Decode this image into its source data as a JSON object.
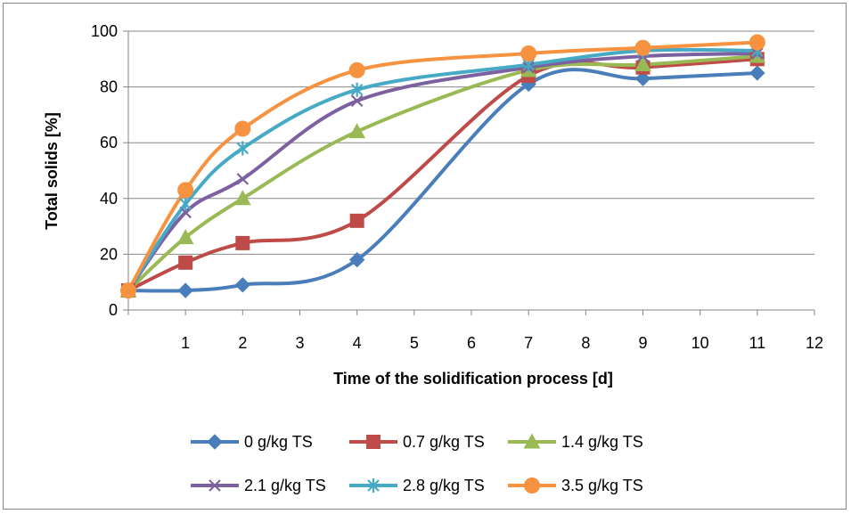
{
  "chart_data": {
    "type": "line",
    "title": "",
    "xlabel": "Time of the solidification  process [d]",
    "ylabel": "Total solids [%]",
    "xlim": [
      0,
      12
    ],
    "ylim": [
      0,
      100
    ],
    "x_ticks": [
      "1",
      "2",
      "3",
      "4",
      "5",
      "6",
      "7",
      "8",
      "9",
      "10",
      "11",
      "12"
    ],
    "y_ticks": [
      "0",
      "20",
      "40",
      "60",
      "80",
      "100"
    ],
    "grid": "horizontal",
    "legend_position": "bottom",
    "x": [
      0,
      1,
      2,
      4,
      7,
      9,
      11
    ],
    "series": [
      {
        "name": "0 g/kg TS",
        "color": "#4a7ebb",
        "marker": "diamond",
        "values": [
          7,
          7,
          9,
          18,
          81,
          83,
          85
        ]
      },
      {
        "name": "0.7 g/kg TS",
        "color": "#be4b48",
        "marker": "square",
        "values": [
          7,
          17,
          24,
          32,
          84,
          87,
          90
        ]
      },
      {
        "name": "1.4 g/kg TS",
        "color": "#98b954",
        "marker": "triangle",
        "values": [
          7,
          26,
          40,
          64,
          86,
          88,
          91
        ]
      },
      {
        "name": "2.1 g/kg TS",
        "color": "#7d60a0",
        "marker": "x",
        "values": [
          7,
          35,
          47,
          75,
          87,
          91,
          92
        ]
      },
      {
        "name": "2.8 g/kg TS",
        "color": "#46aac5",
        "marker": "star",
        "values": [
          7,
          38,
          58,
          79,
          88,
          93,
          93
        ]
      },
      {
        "name": "3.5 g/kg TS",
        "color": "#f69240",
        "marker": "circle",
        "values": [
          7,
          43,
          65,
          86,
          92,
          94,
          96
        ]
      }
    ]
  }
}
